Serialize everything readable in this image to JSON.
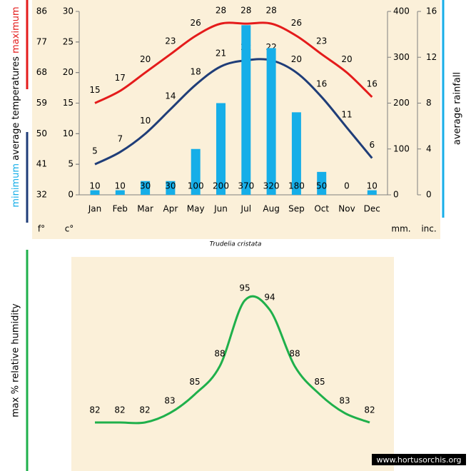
{
  "chart_data": [
    {
      "type": "combo",
      "title": "Trudelia cristata",
      "ylabel": "average temperatures",
      "y2label": "average rainfall",
      "categories": [
        "Jan",
        "Feb",
        "Mar",
        "Apr",
        "May",
        "Jun",
        "Jul",
        "Aug",
        "Sep",
        "Oct",
        "Nov",
        "Dec"
      ],
      "series": [
        {
          "name": "maximum",
          "color": "#e41b1b",
          "values": [
            15,
            17,
            20,
            23,
            26,
            28,
            28,
            28,
            26,
            23,
            20,
            16
          ]
        },
        {
          "name": "minimum",
          "color": "#1f3d78",
          "values": [
            5,
            7,
            10,
            14,
            18,
            21,
            22,
            22,
            20,
            16,
            11,
            6
          ]
        },
        {
          "name": "average rainfall",
          "color": "#16aee8",
          "axis": "y2",
          "values": [
            10,
            10,
            30,
            30,
            100,
            200,
            370,
            320,
            180,
            50,
            0,
            10
          ]
        }
      ],
      "ylim": [
        0,
        30
      ],
      "yticks": [
        0,
        5,
        10,
        15,
        20,
        25,
        30
      ],
      "yunit": "c°",
      "yflim": [
        32,
        86
      ],
      "yfticks": [
        32,
        41,
        50,
        59,
        68,
        77,
        86
      ],
      "yfunit": "f°",
      "y2lim": [
        0,
        400
      ],
      "y2ticks": [
        0,
        100,
        200,
        300,
        400
      ],
      "y2unit": "mm.",
      "y3lim": [
        0,
        16
      ],
      "y3ticks": [
        0,
        4,
        8,
        12,
        16
      ],
      "y3unit": "inc."
    },
    {
      "type": "line",
      "ylabel": "max % relative humidity",
      "color": "#1fb04b",
      "values": [
        82,
        82,
        82,
        83,
        85,
        88,
        95,
        94,
        88,
        85,
        83,
        82
      ]
    }
  ],
  "watermark": "www.hortusorchis.org"
}
